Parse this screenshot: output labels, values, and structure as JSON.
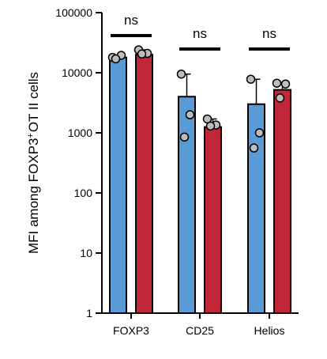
{
  "chart_data": {
    "type": "bar",
    "yscale": "log",
    "ylim": [
      1,
      100000
    ],
    "ylabel_main": "MFI among FOXP3",
    "ylabel_sup": "+",
    "ylabel_rest": "OT II cells",
    "yticks": [
      "1",
      "10",
      "100",
      "1000",
      "10000",
      "100000"
    ],
    "tick_values": [
      1,
      10,
      100,
      1000,
      10000,
      100000
    ],
    "categories": [
      "FOXP3",
      "CD25",
      "Helios"
    ],
    "series": [
      {
        "color": "#5b9bd5",
        "values": [
          18000,
          4000,
          3000
        ],
        "points": [
          [
            18000,
            19500,
            17000
          ],
          [
            9500,
            2000,
            850
          ],
          [
            7800,
            1000,
            560
          ]
        ]
      },
      {
        "color": "#c0283a",
        "values": [
          20000,
          1250,
          5200
        ],
        "points": [
          [
            24000,
            21000,
            20500
          ],
          [
            1700,
            1350,
            1300
          ],
          [
            6700,
            6500,
            3800
          ]
        ]
      }
    ],
    "annotations": [
      {
        "category": "FOXP3",
        "text": "ns"
      },
      {
        "category": "CD25",
        "text": "ns"
      },
      {
        "category": "Helios",
        "text": "ns"
      }
    ],
    "grid": false,
    "legend": "none"
  }
}
